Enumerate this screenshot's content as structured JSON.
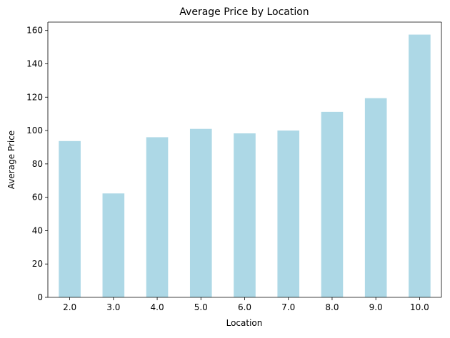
{
  "chart_data": {
    "type": "bar",
    "title": "Average Price by Location",
    "xlabel": "Location",
    "ylabel": "Average Price",
    "categories": [
      "2.0",
      "3.0",
      "4.0",
      "5.0",
      "6.0",
      "7.0",
      "8.0",
      "9.0",
      "10.0"
    ],
    "values": [
      93.7,
      62.3,
      96.0,
      101.0,
      98.3,
      100.0,
      111.2,
      119.4,
      157.5
    ],
    "ylim": [
      0,
      165
    ],
    "yticks": [
      0,
      20,
      40,
      60,
      80,
      100,
      120,
      140,
      160
    ],
    "grid": false,
    "bar_color": "#add8e6"
  }
}
